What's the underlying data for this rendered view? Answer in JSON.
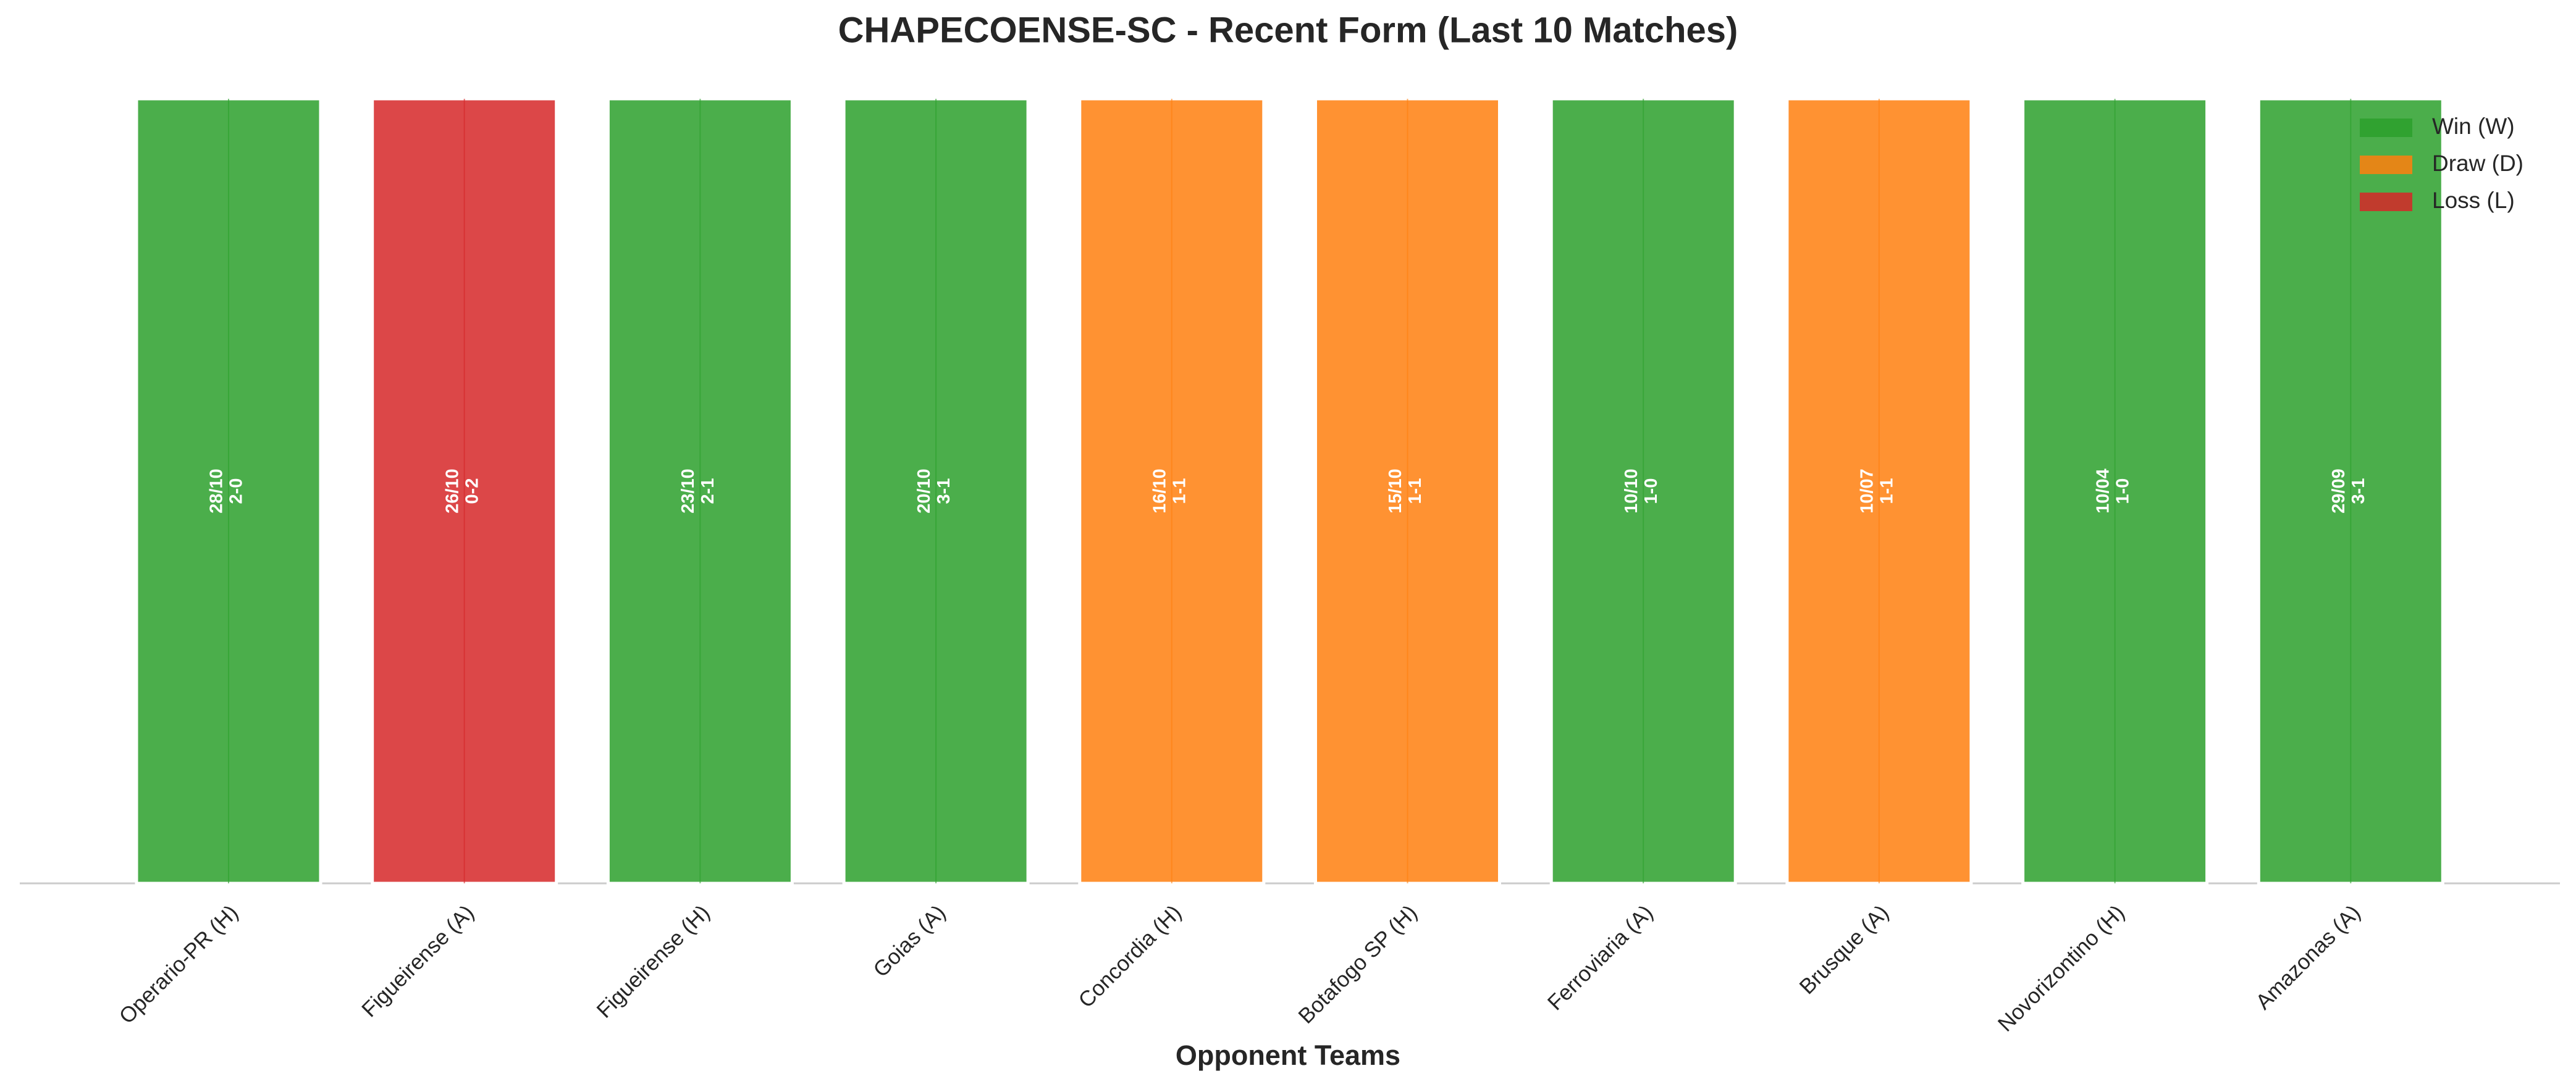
{
  "chart_data": {
    "type": "bar",
    "title": "CHAPECOENSE-SC - Recent Form (Last 10 Matches)",
    "xlabel": "Opponent Teams",
    "categories": [
      "Operario-PR (H)",
      "Figueirense (A)",
      "Figueirense (H)",
      "Goias (A)",
      "Concordia (H)",
      "Botafogo SP (H)",
      "Ferroviaria (A)",
      "Brusque (A)",
      "Novorizontino (H)",
      "Amazonas (A)"
    ],
    "values": [
      1,
      1,
      1,
      1,
      1,
      1,
      1,
      1,
      1,
      1
    ],
    "colors": [
      "#2ca02c",
      "#d62728",
      "#2ca02c",
      "#2ca02c",
      "#ff7f0e",
      "#ff7f0e",
      "#2ca02c",
      "#ff7f0e",
      "#2ca02c",
      "#2ca02c"
    ],
    "dates": [
      "28/10",
      "26/10",
      "23/10",
      "20/10",
      "16/10",
      "15/10",
      "10/10",
      "10/07",
      "10/04",
      "29/09"
    ],
    "scores": [
      "2-0",
      "0-2",
      "2-1",
      "3-1",
      "1-1",
      "1-1",
      "1-0",
      "1-1",
      "1-0",
      "3-1"
    ],
    "ylim": [
      0,
      1
    ],
    "legend": [
      {
        "name": "Win (W)",
        "color": "#2ca02c"
      },
      {
        "name": "Draw (D)",
        "color": "#ff7f0e"
      },
      {
        "name": "Loss (L)",
        "color": "#d62728"
      }
    ],
    "legend_loc": "upper right"
  }
}
